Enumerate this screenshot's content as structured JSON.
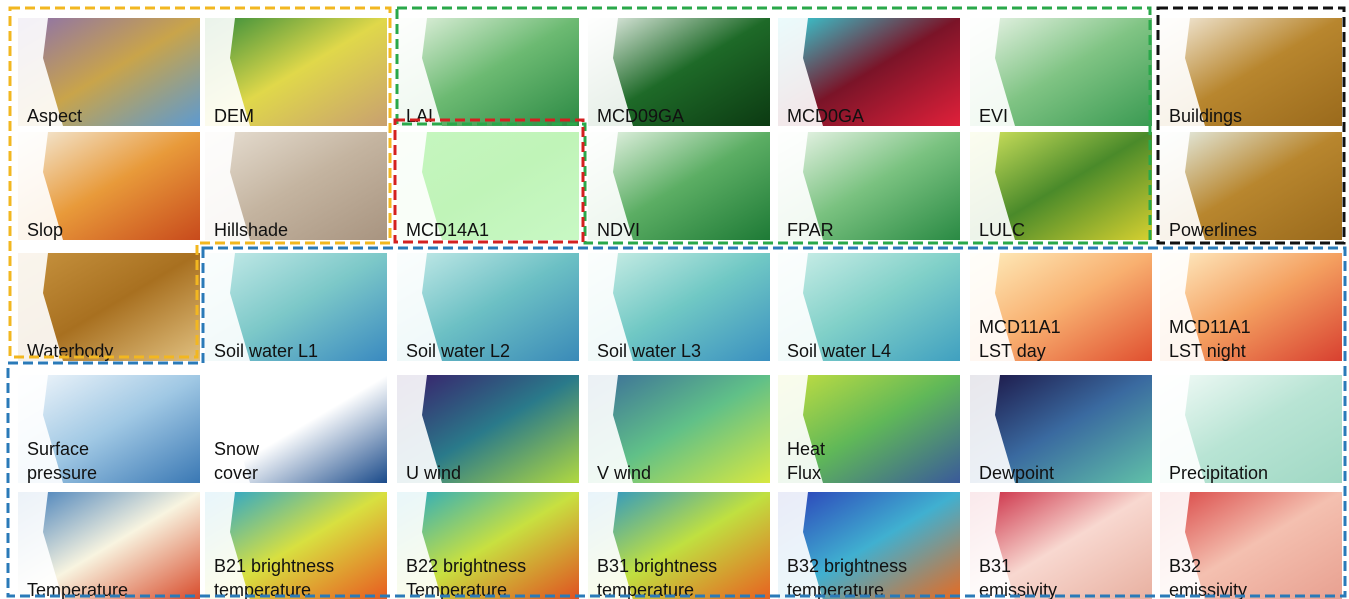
{
  "tiles": [
    {
      "lines": [
        "Aspect"
      ]
    },
    {
      "lines": [
        "DEM"
      ]
    },
    {
      "lines": [
        "LAI"
      ]
    },
    {
      "lines": [
        "MCD09GA"
      ]
    },
    {
      "lines": [
        "MCD0GA"
      ]
    },
    {
      "lines": [
        "EVI"
      ]
    },
    {
      "lines": [
        "Buildings"
      ]
    },
    {
      "lines": [
        "Slop"
      ]
    },
    {
      "lines": [
        "Hillshade"
      ]
    },
    {
      "lines": [
        "MCD14A1"
      ]
    },
    {
      "lines": [
        "NDVI"
      ]
    },
    {
      "lines": [
        "FPAR"
      ]
    },
    {
      "lines": [
        "LULC"
      ]
    },
    {
      "lines": [
        "Powerlines"
      ]
    },
    {
      "lines": [
        "Waterbody"
      ]
    },
    {
      "lines": [
        "Soil water L1"
      ]
    },
    {
      "lines": [
        "Soil water L2"
      ]
    },
    {
      "lines": [
        "Soil water L3"
      ]
    },
    {
      "lines": [
        "Soil water L4"
      ]
    },
    {
      "lines": [
        "MCD11A1",
        "LST day"
      ]
    },
    {
      "lines": [
        "MCD11A1",
        "LST night"
      ]
    },
    {
      "lines": [
        "Surface",
        "pressure"
      ]
    },
    {
      "lines": [
        "Snow",
        "cover"
      ]
    },
    {
      "lines": [
        "U wind"
      ]
    },
    {
      "lines": [
        "V wind"
      ]
    },
    {
      "lines": [
        "Heat",
        "Flux"
      ]
    },
    {
      "lines": [
        "Dewpoint"
      ]
    },
    {
      "lines": [
        "Precipitation"
      ]
    },
    {
      "lines": [
        "Temperature"
      ]
    },
    {
      "lines": [
        "B21 brightness",
        "temperature"
      ]
    },
    {
      "lines": [
        "B22 brightness",
        "Temperature"
      ]
    },
    {
      "lines": [
        "B31 brightness",
        "temperature"
      ]
    },
    {
      "lines": [
        "B32 brightness",
        "temperature"
      ]
    },
    {
      "lines": [
        "B31",
        "emissivity"
      ]
    },
    {
      "lines": [
        "B32",
        "emissivity"
      ]
    }
  ]
}
